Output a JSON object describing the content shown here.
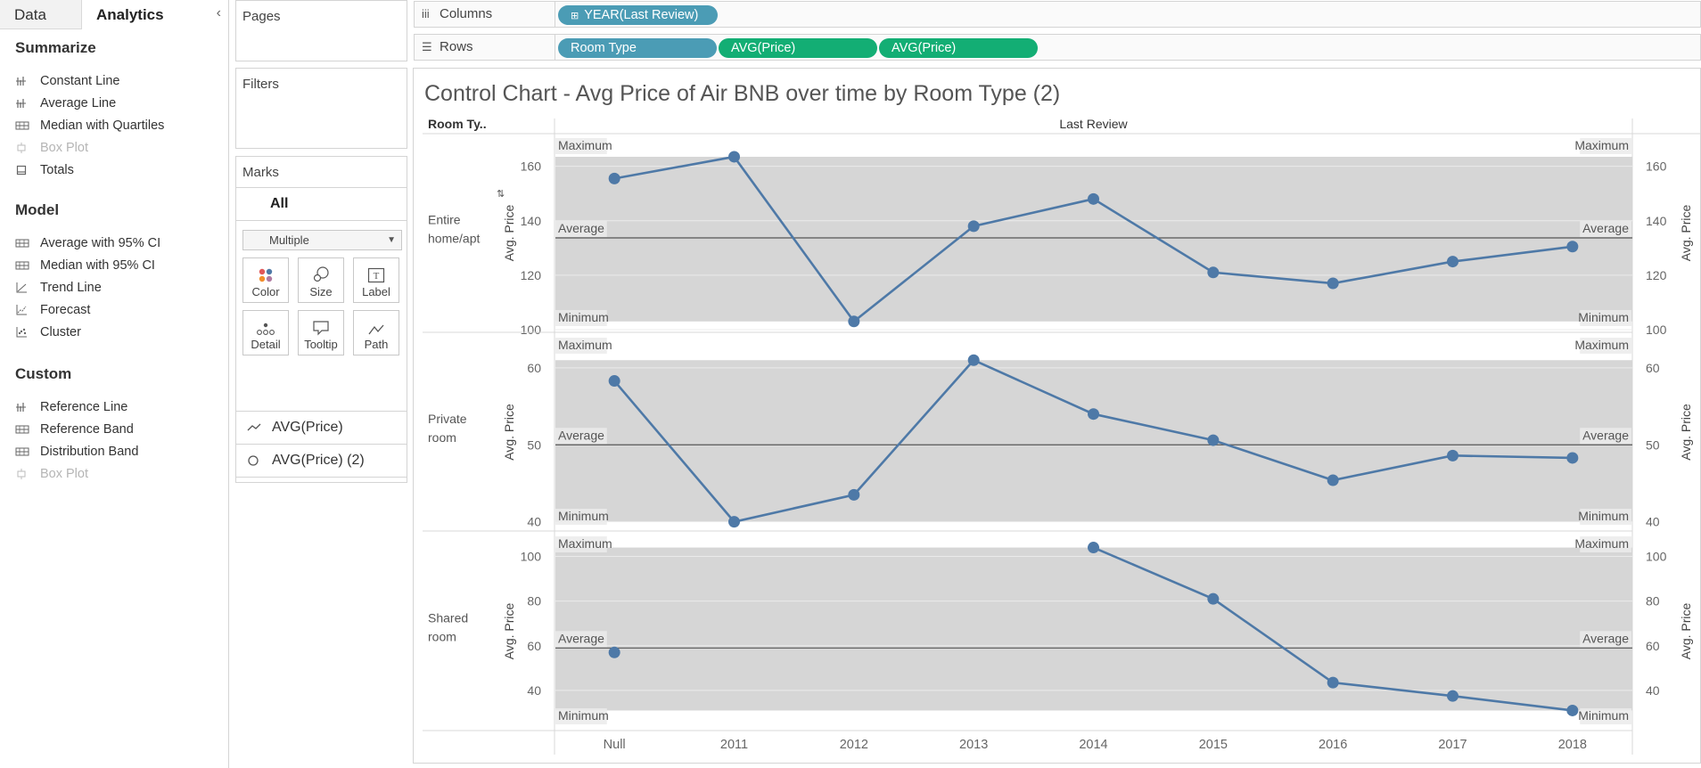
{
  "pane": {
    "tab_data": "Data",
    "tab_analytics": "Analytics",
    "collapse_icon": "‹",
    "sections": [
      {
        "title": "Summarize",
        "items": [
          {
            "label": "Constant Line",
            "icon": "constant-line-icon",
            "enabled": true
          },
          {
            "label": "Average Line",
            "icon": "average-line-icon",
            "enabled": true
          },
          {
            "label": "Median with Quartiles",
            "icon": "median-quartiles-icon",
            "enabled": true
          },
          {
            "label": "Box Plot",
            "icon": "box-plot-icon",
            "enabled": false
          },
          {
            "label": "Totals",
            "icon": "totals-icon",
            "enabled": true
          }
        ]
      },
      {
        "title": "Model",
        "items": [
          {
            "label": "Average with 95% CI",
            "icon": "average-ci-icon",
            "enabled": true
          },
          {
            "label": "Median with 95% CI",
            "icon": "median-ci-icon",
            "enabled": true
          },
          {
            "label": "Trend Line",
            "icon": "trend-line-icon",
            "enabled": true
          },
          {
            "label": "Forecast",
            "icon": "forecast-icon",
            "enabled": true
          },
          {
            "label": "Cluster",
            "icon": "cluster-icon",
            "enabled": true
          }
        ]
      },
      {
        "title": "Custom",
        "items": [
          {
            "label": "Reference Line",
            "icon": "reference-line-icon",
            "enabled": true
          },
          {
            "label": "Reference Band",
            "icon": "reference-band-icon",
            "enabled": true
          },
          {
            "label": "Distribution Band",
            "icon": "distribution-band-icon",
            "enabled": true
          },
          {
            "label": "Box Plot",
            "icon": "box-plot-icon",
            "enabled": false
          }
        ]
      }
    ]
  },
  "cards": {
    "pages": "Pages",
    "filters": "Filters",
    "marks": "Marks",
    "marks_all": "All",
    "marks_type": "Multiple",
    "buttons": {
      "color": "Color",
      "size": "Size",
      "label": "Label",
      "detail": "Detail",
      "tooltip": "Tooltip",
      "path": "Path"
    },
    "layers": [
      "AVG(Price)",
      "AVG(Price) (2)"
    ]
  },
  "shelves": {
    "columns_label": "Columns",
    "rows_label": "Rows",
    "columns_pills": [
      "YEAR(Last Review)"
    ],
    "rows_pills": [
      "Room Type",
      "AVG(Price)",
      "AVG(Price)"
    ],
    "colors": {
      "dimension": "#4b9cb5",
      "measure": "#13ae74"
    }
  },
  "viz": {
    "title": "Control Chart - Avg Price of Air BNB over time by Room Type (2)"
  },
  "chart_data": {
    "type": "line",
    "title": "Control Chart - Avg Price of Air BNB over time by Room Type (2)",
    "row_header": "Room Ty..",
    "column_header": "Last Review",
    "ylabel": "Avg. Price",
    "categories": [
      "Null",
      "2011",
      "2012",
      "2013",
      "2014",
      "2015",
      "2016",
      "2017",
      "2018"
    ],
    "band_labels": {
      "max": "Maximum",
      "avg": "Average",
      "min": "Minimum"
    },
    "colors": {
      "line": "#4e79a7",
      "band": "#d6d6d6"
    },
    "panels": [
      {
        "name": "Entire home/apt",
        "name_lines": [
          "Entire",
          "home/apt"
        ],
        "y_ticks": [
          100,
          120,
          140,
          160
        ],
        "ylim": [
          99,
          172
        ],
        "values": [
          155.5,
          163.5,
          103,
          138,
          148,
          121,
          117,
          125,
          130.5
        ],
        "connect_null": true,
        "band_min": 103,
        "band_max": 163.5,
        "average": 133.7
      },
      {
        "name": "Private room",
        "name_lines": [
          "Private",
          "room"
        ],
        "y_ticks": [
          40,
          50,
          60
        ],
        "ylim": [
          38.8,
          64.5
        ],
        "values": [
          58.3,
          40,
          43.5,
          61,
          54,
          50.6,
          45.4,
          48.6,
          48.3
        ],
        "connect_null": true,
        "band_min": 40,
        "band_max": 61,
        "average": 50
      },
      {
        "name": "Shared room",
        "name_lines": [
          "Shared",
          "room"
        ],
        "y_ticks": [
          40,
          60,
          80,
          100
        ],
        "ylim": [
          22,
          111
        ],
        "values": [
          57,
          null,
          null,
          null,
          104,
          81,
          43.5,
          37.5,
          31
        ],
        "connect_null": false,
        "band_min": 31,
        "band_max": 104,
        "average": 59
      }
    ]
  }
}
